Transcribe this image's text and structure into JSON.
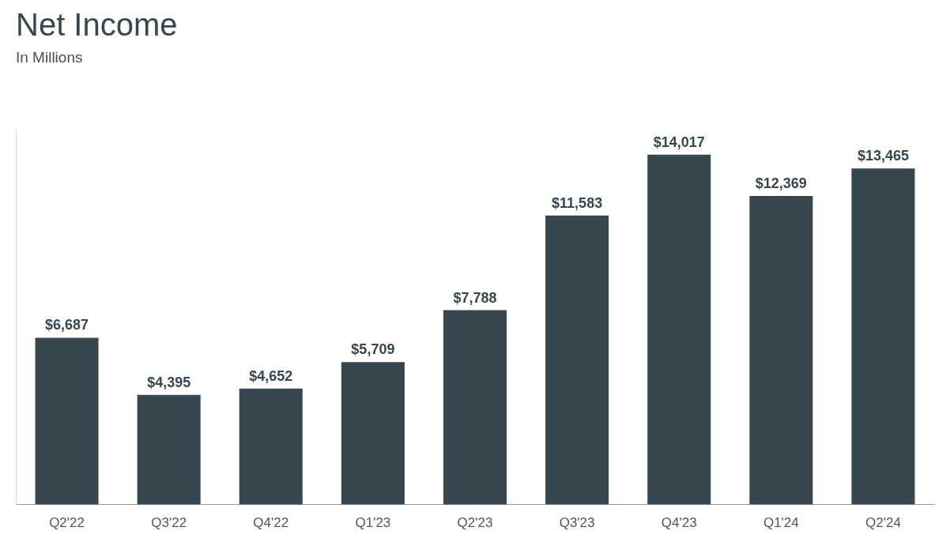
{
  "chart_data": {
    "type": "bar",
    "title": "Net Income",
    "subtitle": "In Millions",
    "categories": [
      "Q2'22",
      "Q3'22",
      "Q4'22",
      "Q1'23",
      "Q2'23",
      "Q3'23",
      "Q4'23",
      "Q1'24",
      "Q2'24"
    ],
    "values": [
      6687,
      4395,
      4652,
      5709,
      7788,
      11583,
      14017,
      12369,
      13465
    ],
    "value_labels": [
      "$6,687",
      "$4,395",
      "$4,652",
      "$5,709",
      "$7,788",
      "$11,583",
      "$14,017",
      "$12,369",
      "$13,465"
    ],
    "color": "#36474f",
    "ylim": [
      0,
      15000
    ],
    "grid": false,
    "data_labels": true,
    "tick_labels": "x",
    "legend": false
  }
}
